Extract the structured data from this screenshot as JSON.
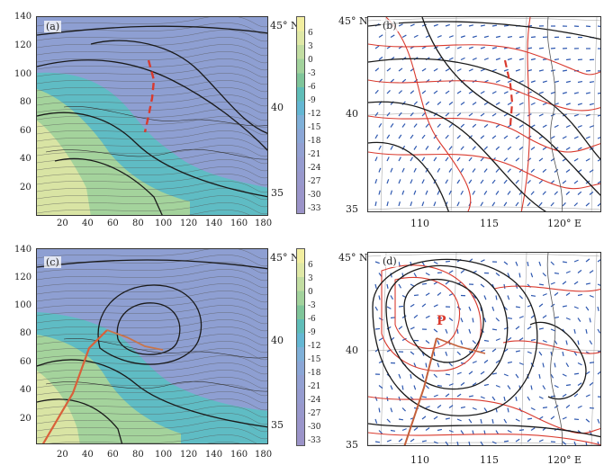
{
  "panels": {
    "a": {
      "label": "(a)",
      "lat_label": "45° N",
      "lat_ticks": [
        "40",
        "35"
      ]
    },
    "b": {
      "label": "(b)",
      "y_ticks": [
        "45° N",
        "40",
        "35"
      ],
      "x_ticks": [
        "110",
        "115",
        "120° E"
      ]
    },
    "c": {
      "label": "(c)",
      "lat_label": "45° N",
      "lat_ticks": [
        "40",
        "35"
      ],
      "point_label": ""
    },
    "d": {
      "label": "(d)",
      "y_ticks": [
        "45° N",
        "40",
        "35"
      ],
      "x_ticks": [
        "110",
        "115",
        "120° E"
      ],
      "point_label": "P"
    }
  },
  "grid_axes": {
    "y_ticks": [
      "140",
      "120",
      "100",
      "80",
      "60",
      "40",
      "20"
    ],
    "x_ticks": [
      "20",
      "40",
      "60",
      "80",
      "100",
      "120",
      "140",
      "160",
      "180"
    ]
  },
  "colorbar": {
    "ticks": [
      "6",
      "3",
      "0",
      "-3",
      "-6",
      "-9",
      "-12",
      "-15",
      "-18",
      "-21",
      "-24",
      "-27",
      "-30",
      "-33"
    ],
    "colors": [
      "#f2eea0",
      "#dfe8a6",
      "#c2dda2",
      "#a2d29c",
      "#7fc59a",
      "#5fbdb8",
      "#64b7d3",
      "#7fb0d8",
      "#8ba6d6",
      "#92a0d2",
      "#959bcf",
      "#9898cc",
      "#9a95ca",
      "#9b93c8"
    ]
  },
  "colors": {
    "contour": "#1a1a1a",
    "thin": "#555555",
    "red": "#d93a2e",
    "barb": "#2e58b0"
  }
}
